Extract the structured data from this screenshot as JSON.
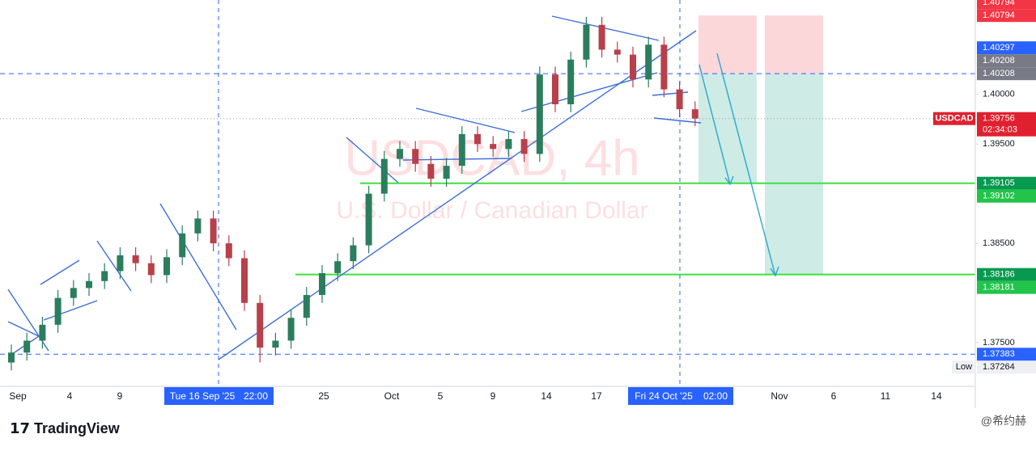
{
  "chart_data": {
    "type": "candlestick",
    "title": "USDCAD, 4h",
    "subtitle": "U.S. Dollar / Canadian Dollar",
    "symbol": "USDCAD",
    "countdown": "02:34:03",
    "up_color": "#2b7d5e",
    "down_color": "#b8404a",
    "ylim": [
      1.3706,
      1.4095
    ],
    "yticks": [
      {
        "value": 1.4,
        "label": "1.40000"
      },
      {
        "value": 1.395,
        "label": "1.39500"
      },
      {
        "value": 1.385,
        "label": "1.38500"
      },
      {
        "value": 1.375,
        "label": "1.37500"
      }
    ],
    "x_labels": [
      "Sep",
      "4",
      "9",
      "Tue 16 Sep '25",
      "22:00",
      "25",
      "Oct",
      "5",
      "9",
      "14",
      "17",
      "Fri 24 Oct '25",
      "02:00",
      "Nov",
      "6",
      "11",
      "14"
    ],
    "candles": [
      [
        1.373,
        1.3748,
        1.3722,
        1.374
      ],
      [
        1.374,
        1.376,
        1.3732,
        1.3752
      ],
      [
        1.3752,
        1.3776,
        1.3744,
        1.3768
      ],
      [
        1.3768,
        1.3803,
        1.376,
        1.3795
      ],
      [
        1.3795,
        1.3813,
        1.3787,
        1.3805
      ],
      [
        1.3805,
        1.382,
        1.3797,
        1.3812
      ],
      [
        1.3812,
        1.383,
        1.3804,
        1.3822
      ],
      [
        1.3822,
        1.3846,
        1.3814,
        1.3838
      ],
      [
        1.3838,
        1.3846,
        1.3822,
        1.383
      ],
      [
        1.383,
        1.3838,
        1.381,
        1.3818
      ],
      [
        1.3818,
        1.3844,
        1.381,
        1.3836
      ],
      [
        1.3836,
        1.3868,
        1.3828,
        1.386
      ],
      [
        1.386,
        1.3883,
        1.3852,
        1.3875
      ],
      [
        1.3875,
        1.3883,
        1.3842,
        1.385
      ],
      [
        1.385,
        1.3858,
        1.3827,
        1.3835
      ],
      [
        1.3835,
        1.3843,
        1.3782,
        1.379
      ],
      [
        1.379,
        1.3798,
        1.373,
        1.3745
      ],
      [
        1.3745,
        1.376,
        1.3737,
        1.3752
      ],
      [
        1.3752,
        1.3783,
        1.3744,
        1.3775
      ],
      [
        1.3775,
        1.3806,
        1.3767,
        1.3798
      ],
      [
        1.3798,
        1.3828,
        1.379,
        1.382
      ],
      [
        1.382,
        1.384,
        1.3812,
        1.3832
      ],
      [
        1.3832,
        1.3856,
        1.3824,
        1.3848
      ],
      [
        1.3848,
        1.3908,
        1.384,
        1.39
      ],
      [
        1.39,
        1.3943,
        1.3892,
        1.3935
      ],
      [
        1.3935,
        1.3953,
        1.3927,
        1.3945
      ],
      [
        1.3945,
        1.3953,
        1.3922,
        1.393
      ],
      [
        1.393,
        1.3938,
        1.3907,
        1.3915
      ],
      [
        1.3915,
        1.3936,
        1.3907,
        1.3928
      ],
      [
        1.3928,
        1.3968,
        1.392,
        1.396
      ],
      [
        1.396,
        1.3968,
        1.3942,
        1.395
      ],
      [
        1.395,
        1.3958,
        1.3937,
        1.3945
      ],
      [
        1.3945,
        1.3963,
        1.3937,
        1.3955
      ],
      [
        1.3955,
        1.3963,
        1.3932,
        1.394
      ],
      [
        1.394,
        1.4028,
        1.3932,
        1.402
      ],
      [
        1.402,
        1.4028,
        1.3982,
        1.399
      ],
      [
        1.399,
        1.4043,
        1.3982,
        1.4035
      ],
      [
        1.4035,
        1.4078,
        1.4027,
        1.407
      ],
      [
        1.407,
        1.4078,
        1.4037,
        1.4045
      ],
      [
        1.4045,
        1.4053,
        1.4032,
        1.404
      ],
      [
        1.404,
        1.4048,
        1.4007,
        1.4015
      ],
      [
        1.4015,
        1.4058,
        1.4007,
        1.405
      ],
      [
        1.405,
        1.4058,
        1.3997,
        1.4005
      ],
      [
        1.4005,
        1.4013,
        1.3977,
        1.3985
      ],
      [
        1.3985,
        1.3993,
        1.3968,
        1.39756
      ]
    ],
    "price_tags": [
      {
        "value": 1.40794,
        "color": "#f23645"
      },
      {
        "value": 1.40794,
        "color": "#f23645"
      },
      {
        "value": 1.40297,
        "color": "#2962ff"
      },
      {
        "value": 1.40208,
        "color": "#787b86"
      },
      {
        "value": 1.40208,
        "color": "#787b86"
      },
      {
        "value": 1.39756,
        "color": "#e0202e"
      },
      {
        "value": 1.39105,
        "color": "#089950"
      },
      {
        "value": 1.39102,
        "color": "#22c44a"
      },
      {
        "value": 1.38186,
        "color": "#089950"
      },
      {
        "value": 1.38181,
        "color": "#22c44a"
      },
      {
        "value": 1.37383,
        "color": "#2962ff"
      },
      {
        "name": "Low",
        "value": 1.37264,
        "color": "#eef0f4"
      }
    ],
    "branding": {
      "logo": "TradingView",
      "author": "@希约赫"
    }
  }
}
